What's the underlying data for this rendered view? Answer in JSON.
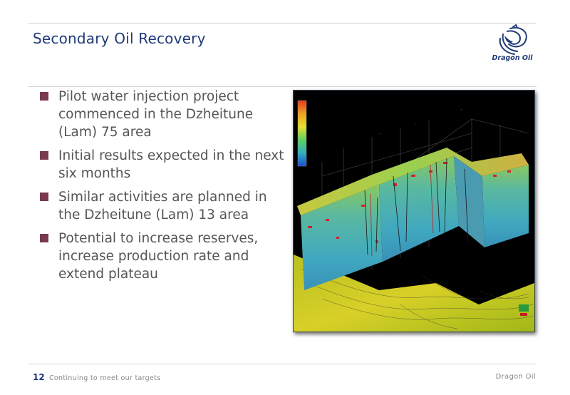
{
  "slide": {
    "title": "Secondary Oil Recovery",
    "logo_text": "Dragon Oil",
    "bullets": [
      "Pilot water injection project commenced in the Dzheitune (Lam) 75 area",
      "Initial results expected in the next six months",
      "Similar activities are planned in the Dzheitune (Lam) 13 area",
      "Potential to increase reserves, increase production rate and extend plateau"
    ]
  },
  "footer": {
    "page_number": "12",
    "text": "Continuing to meet our targets",
    "brand": "Dragon Oil"
  },
  "colors": {
    "title": "#1f3a78",
    "bullet_square": "#7a3a4e",
    "body_text": "#555555"
  }
}
